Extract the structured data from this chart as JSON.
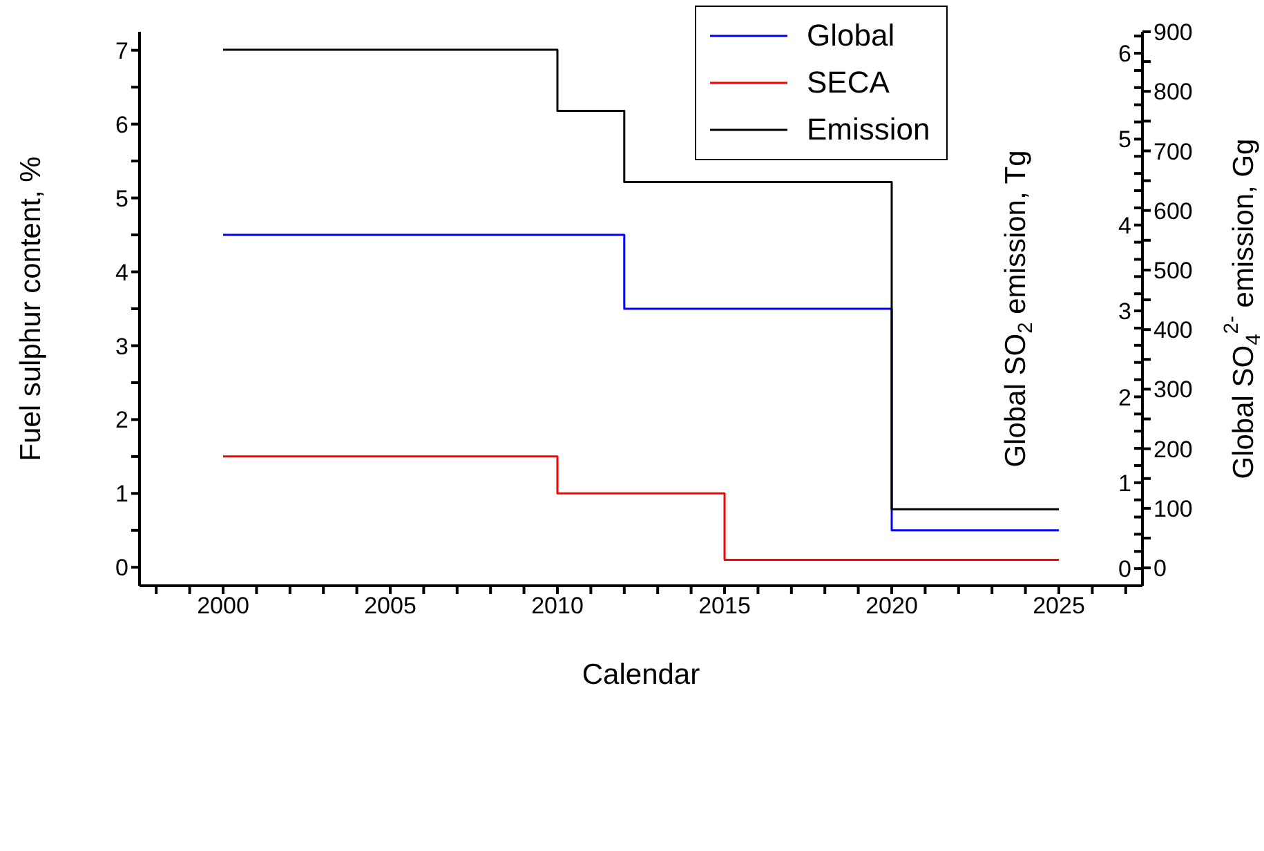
{
  "chart_data": {
    "type": "step",
    "xlabel": "Calendar",
    "ylabel": "Fuel sulphur content, %",
    "y2label": "Global SO$_{2}$ emission, Tg",
    "y3label": "Global SO$_{4}$$^{2-}$ emission, Gg",
    "xlim": [
      1997.5,
      2027.5
    ],
    "xticks": [
      {
        "value": 1998,
        "label": null
      },
      {
        "value": 1999,
        "label": null
      },
      2000,
      {
        "value": 2001,
        "label": null
      },
      {
        "value": 2002,
        "label": null
      },
      {
        "value": 2003,
        "label": null
      },
      {
        "value": 2004,
        "label": null
      },
      2005,
      {
        "value": 2006,
        "label": null
      },
      {
        "value": 2007,
        "label": null
      },
      {
        "value": 2008,
        "label": null
      },
      {
        "value": 2009,
        "label": null
      },
      2010,
      {
        "value": 2011,
        "label": null
      },
      {
        "value": 2012,
        "label": null
      },
      {
        "value": 2013,
        "label": null
      },
      {
        "value": 2014,
        "label": null
      },
      2015,
      {
        "value": 2016,
        "label": null
      },
      {
        "value": 2017,
        "label": null
      },
      {
        "value": 2018,
        "label": null
      },
      {
        "value": 2019,
        "label": null
      },
      2020,
      {
        "value": 2021,
        "label": null
      },
      {
        "value": 2022,
        "label": null
      },
      {
        "value": 2023,
        "label": null
      },
      {
        "value": 2024,
        "label": null
      },
      2025,
      {
        "value": 2026,
        "label": null
      },
      {
        "value": 2027,
        "label": null
      }
    ],
    "ylim": [
      -0.25,
      7.25
    ],
    "yticks": [
      0,
      {
        "value": 0.5,
        "label": null
      },
      1,
      {
        "value": 1.5,
        "label": null
      },
      2,
      {
        "value": 2.5,
        "label": null
      },
      3,
      {
        "value": 3.5,
        "label": null
      },
      4,
      {
        "value": 4.5,
        "label": null
      },
      5,
      {
        "value": 5.5,
        "label": null
      },
      6,
      {
        "value": 6.5,
        "label": null
      },
      7
    ],
    "y2lim": [
      -0.2,
      6.25
    ],
    "y2ticks": [
      0,
      {
        "value": 0.2,
        "label": null
      },
      {
        "value": 0.4,
        "label": null
      },
      {
        "value": 0.6,
        "label": null
      },
      {
        "value": 0.8,
        "label": null
      },
      1,
      {
        "value": 1.2,
        "label": null
      },
      {
        "value": 1.4,
        "label": null
      },
      {
        "value": 1.6,
        "label": null
      },
      {
        "value": 1.8,
        "label": null
      },
      2,
      {
        "value": 2.2,
        "label": null
      },
      {
        "value": 2.4,
        "label": null
      },
      {
        "value": 2.6,
        "label": null
      },
      {
        "value": 2.8,
        "label": null
      },
      3,
      {
        "value": 3.2,
        "label": null
      },
      {
        "value": 3.4,
        "label": null
      },
      {
        "value": 3.6,
        "label": null
      },
      {
        "value": 3.8,
        "label": null
      },
      4,
      {
        "value": 4.2,
        "label": null
      },
      {
        "value": 4.4,
        "label": null
      },
      {
        "value": 4.6,
        "label": null
      },
      {
        "value": 4.8,
        "label": null
      },
      5,
      {
        "value": 5.2,
        "label": null
      },
      {
        "value": 5.4,
        "label": null
      },
      {
        "value": 5.6,
        "label": null
      },
      {
        "value": 5.8,
        "label": null
      },
      6,
      {
        "value": 6.2,
        "label": null
      }
    ],
    "y3lim": [
      -30,
      900
    ],
    "y3ticks": [
      0,
      {
        "value": 50,
        "label": null
      },
      100,
      {
        "value": 150,
        "label": null
      },
      200,
      {
        "value": 250,
        "label": null
      },
      300,
      {
        "value": 350,
        "label": null
      },
      400,
      {
        "value": 450,
        "label": null
      },
      500,
      {
        "value": 550,
        "label": null
      },
      600,
      {
        "value": 650,
        "label": null
      },
      700,
      {
        "value": 750,
        "label": null
      },
      800,
      {
        "value": 850,
        "label": null
      },
      900
    ],
    "legend": "top right",
    "series": [
      {
        "name": "Global",
        "color": "#0000ff",
        "x": [
          2000,
          2012,
          2020,
          2025
        ],
        "values": [
          4.5,
          3.5,
          0.5,
          0.5
        ]
      },
      {
        "name": "SECA",
        "color": "#ff0000",
        "x": [
          2000,
          2010,
          2015,
          2025
        ],
        "values": [
          1.5,
          1.0,
          0.1,
          0.1
        ]
      },
      {
        "name": "Emission",
        "color": "#000000",
        "axis": "y2",
        "x": [
          2000,
          2010,
          2012,
          2020,
          2025
        ],
        "values": [
          6.04,
          5.33,
          4.5,
          0.69,
          0.69
        ]
      }
    ]
  }
}
